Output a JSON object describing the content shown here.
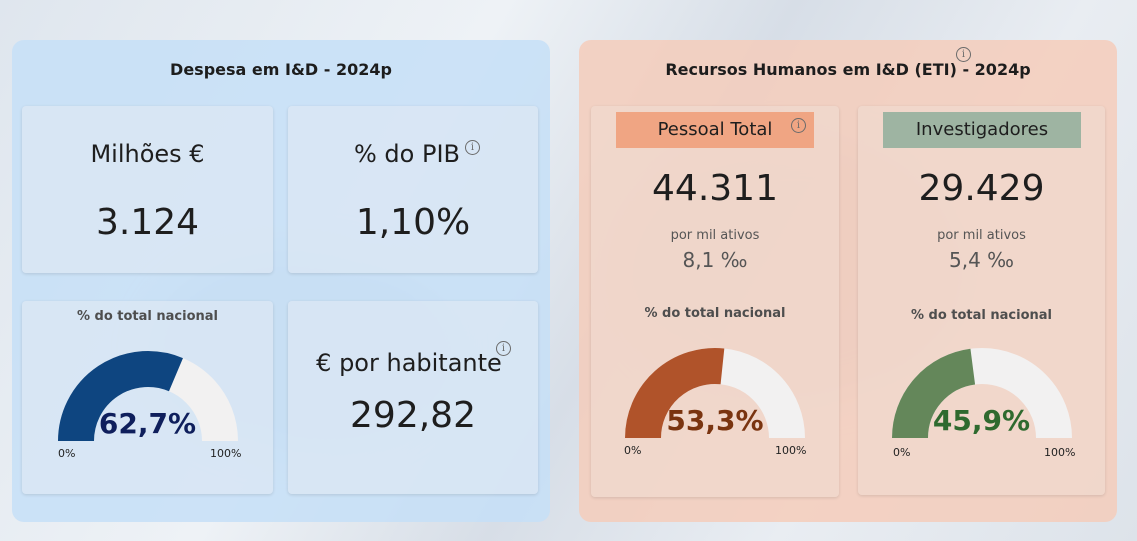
{
  "left_panel": {
    "title": "Despesa em I&D - 2024p",
    "millions": {
      "title": "Milhões €",
      "value": "3.124"
    },
    "pib": {
      "title": "% do PIB",
      "value": "1,10%"
    },
    "national": {
      "label": "% do total nacional",
      "value_text": "62,7%",
      "fraction": 0.627,
      "min": "0%",
      "max": "100%"
    },
    "per_capita": {
      "title": "€ por habitante",
      "value": "292,82"
    }
  },
  "right_panel": {
    "title": "Recursos Humanos em I&D (ETI) - 2024p",
    "total": {
      "header": "Pessoal Total",
      "value": "44.311",
      "per_label": "por mil ativos",
      "per_value": "8,1 ‰",
      "national_label": "% do total nacional",
      "gauge_text": "53,3%",
      "fraction": 0.533,
      "min": "0%",
      "max": "100%"
    },
    "researchers": {
      "header": "Investigadores",
      "value": "29.429",
      "per_label": "por mil ativos",
      "per_value": "5,4 ‰",
      "national_label": "% do total nacional",
      "gauge_text": "45,9%",
      "fraction": 0.459,
      "min": "0%",
      "max": "100%"
    }
  },
  "colors": {
    "gauge_left_fill": "#0e4580",
    "gauge_left_text": "#0f1f5c",
    "gauge_total_fill": "#b0532a",
    "gauge_total_text": "#7a3410",
    "gauge_researchers_fill": "#64875a",
    "gauge_researchers_text": "#2f6a2f",
    "gauge_track": "#f2f1f1",
    "header_total_bg": "#f0a583",
    "header_researchers_bg": "#9eb4a2"
  },
  "icons": {
    "info": "info-icon"
  }
}
